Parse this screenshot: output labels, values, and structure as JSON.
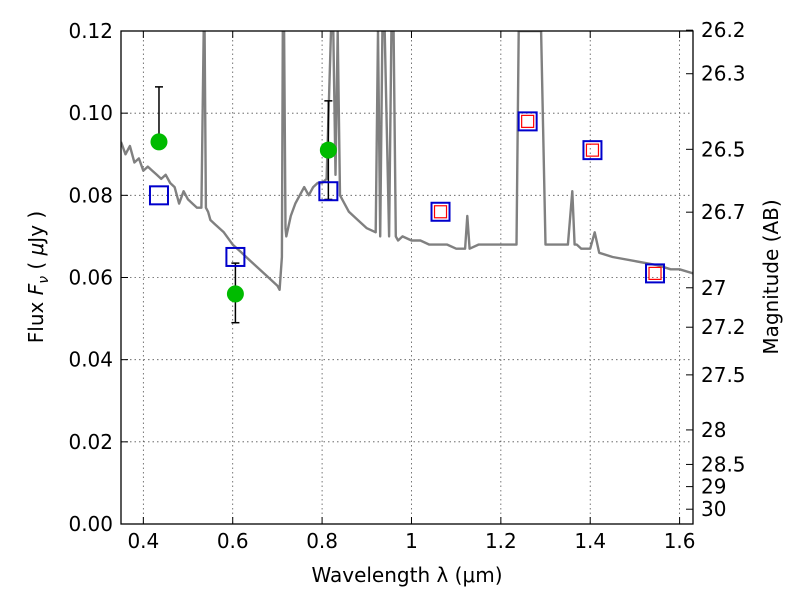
{
  "chart_data": {
    "type": "scatter",
    "xlabel": "Wavelength  λ (μm)",
    "ylabel": "Flux  F_ν  ( μJy )",
    "ylabel_right": "Magnitude (AB)",
    "xlim": [
      0.35,
      1.63
    ],
    "ylim": [
      0.0,
      0.12
    ],
    "grid": true,
    "x_ticks": [
      0.4,
      0.6,
      0.8,
      1.0,
      1.2,
      1.4,
      1.6
    ],
    "x_tick_labels": [
      "0.4",
      "0.6",
      "0.8",
      "1",
      "1.2",
      "1.4",
      "1.6"
    ],
    "y_ticks": [
      0.0,
      0.02,
      0.04,
      0.06,
      0.08,
      0.1,
      0.12
    ],
    "y_tick_labels": [
      "0.00",
      "0.02",
      "0.04",
      "0.06",
      "0.08",
      "0.10",
      "0.12"
    ],
    "right_ticks": [
      {
        "label": "26.2",
        "flux": 0.1202
      },
      {
        "label": "26.3",
        "flux": 0.1096
      },
      {
        "label": "26.5",
        "flux": 0.0912
      },
      {
        "label": "26.7",
        "flux": 0.0759
      },
      {
        "label": "27",
        "flux": 0.0575
      },
      {
        "label": "27.2",
        "flux": 0.0479
      },
      {
        "label": "27.5",
        "flux": 0.0363
      },
      {
        "label": "28",
        "flux": 0.0229
      },
      {
        "label": "28.5",
        "flux": 0.0145
      },
      {
        "label": "29",
        "flux": 0.0091
      },
      {
        "label": "30",
        "flux": 0.0036
      }
    ],
    "series": [
      {
        "kind": "line",
        "color": "#808080",
        "x": [
          0.35,
          0.36,
          0.37,
          0.38,
          0.39,
          0.4,
          0.41,
          0.42,
          0.43,
          0.44,
          0.45,
          0.46,
          0.47,
          0.48,
          0.49,
          0.5,
          0.51,
          0.52,
          0.53,
          0.535,
          0.537,
          0.54,
          0.545,
          0.55,
          0.56,
          0.58,
          0.6,
          0.62,
          0.64,
          0.66,
          0.68,
          0.7,
          0.705,
          0.71,
          0.712,
          0.715,
          0.718,
          0.72,
          0.73,
          0.74,
          0.76,
          0.77,
          0.78,
          0.79,
          0.8,
          0.81,
          0.82,
          0.825,
          0.83,
          0.835,
          0.84,
          0.86,
          0.88,
          0.9,
          0.92,
          0.925,
          0.93,
          0.935,
          0.94,
          0.95,
          0.955,
          0.96,
          0.965,
          0.97,
          0.98,
          1.0,
          1.02,
          1.04,
          1.06,
          1.08,
          1.1,
          1.12,
          1.125,
          1.13,
          1.15,
          1.18,
          1.2,
          1.235,
          1.24,
          1.245,
          1.25,
          1.27,
          1.29,
          1.3,
          1.305,
          1.31,
          1.33,
          1.35,
          1.36,
          1.365,
          1.37,
          1.38,
          1.4,
          1.41,
          1.42,
          1.45,
          1.5,
          1.55,
          1.58,
          1.6,
          1.63
        ],
        "y": [
          0.093,
          0.09,
          0.092,
          0.088,
          0.089,
          0.086,
          0.087,
          0.086,
          0.085,
          0.084,
          0.085,
          0.083,
          0.082,
          0.078,
          0.081,
          0.079,
          0.078,
          0.077,
          0.077,
          0.12,
          0.12,
          0.077,
          0.076,
          0.074,
          0.073,
          0.071,
          0.068,
          0.066,
          0.064,
          0.062,
          0.06,
          0.058,
          0.057,
          0.065,
          0.12,
          0.12,
          0.072,
          0.07,
          0.075,
          0.078,
          0.082,
          0.08,
          0.082,
          0.083,
          0.083,
          0.084,
          0.12,
          0.12,
          0.085,
          0.12,
          0.08,
          0.076,
          0.074,
          0.072,
          0.071,
          0.12,
          0.07,
          0.12,
          0.12,
          0.07,
          0.12,
          0.12,
          0.07,
          0.069,
          0.07,
          0.069,
          0.069,
          0.068,
          0.068,
          0.068,
          0.067,
          0.067,
          0.075,
          0.067,
          0.068,
          0.068,
          0.068,
          0.068,
          0.12,
          0.12,
          0.12,
          0.12,
          0.12,
          0.068,
          0.068,
          0.068,
          0.068,
          0.068,
          0.081,
          0.068,
          0.068,
          0.067,
          0.067,
          0.071,
          0.066,
          0.065,
          0.064,
          0.063,
          0.062,
          0.062,
          0.061
        ]
      },
      {
        "kind": "points",
        "marker": "circle",
        "color": "#00bb00",
        "x": [
          0.435,
          0.606,
          0.814
        ],
        "y": [
          0.093,
          0.056,
          0.091
        ],
        "err_low": [
          0.0,
          0.007,
          0.012
        ],
        "err_high": [
          0.0134,
          0.0075,
          0.012
        ]
      },
      {
        "kind": "points",
        "marker": "square",
        "edge_color": "#0000cc",
        "x": [
          0.435,
          0.606,
          0.814,
          1.065,
          1.26,
          1.405,
          1.545
        ],
        "y": [
          0.08,
          0.065,
          0.081,
          0.076,
          0.098,
          0.091,
          0.061
        ]
      },
      {
        "kind": "points",
        "marker": "square-small",
        "edge_color": "#ff0000",
        "x": [
          1.065,
          1.26,
          1.405,
          1.545
        ],
        "y": [
          0.076,
          0.098,
          0.091,
          0.061
        ]
      }
    ]
  }
}
